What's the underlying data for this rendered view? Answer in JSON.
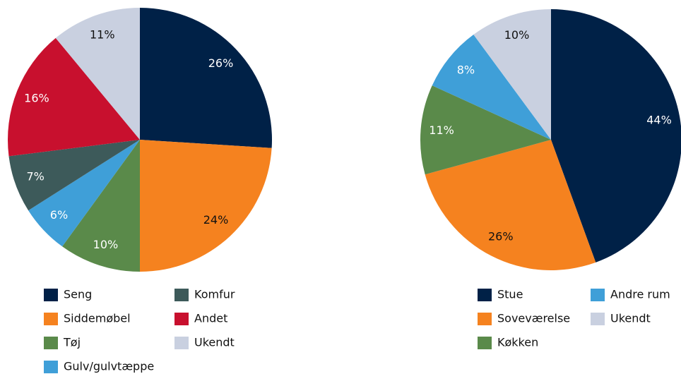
{
  "chart_data": [
    {
      "type": "pie",
      "categories": [
        "Seng",
        "Siddemøbel",
        "Tøj",
        "Gulv/gulvtæppe",
        "Komfur",
        "Andet",
        "Ukendt"
      ],
      "values": [
        26,
        24,
        10,
        6,
        7,
        16,
        11
      ],
      "value_labels": [
        "26%",
        "24%",
        "10%",
        "6%",
        "7%",
        "16%",
        "11%"
      ],
      "colors": [
        "#002147",
        "#f5821f",
        "#5a8a4a",
        "#3f9fd8",
        "#3d5a5a",
        "#c8102e",
        "#c9d0e0"
      ]
    },
    {
      "type": "pie",
      "categories": [
        "Stue",
        "Soveværelse",
        "Køkken",
        "Andre rum",
        "Ukendt"
      ],
      "values": [
        44,
        26,
        11,
        8,
        10
      ],
      "value_labels": [
        "44%",
        "26%",
        "11%",
        "8%",
        "10%"
      ],
      "colors": [
        "#002147",
        "#f5821f",
        "#5a8a4a",
        "#3f9fd8",
        "#c9d0e0"
      ]
    }
  ]
}
